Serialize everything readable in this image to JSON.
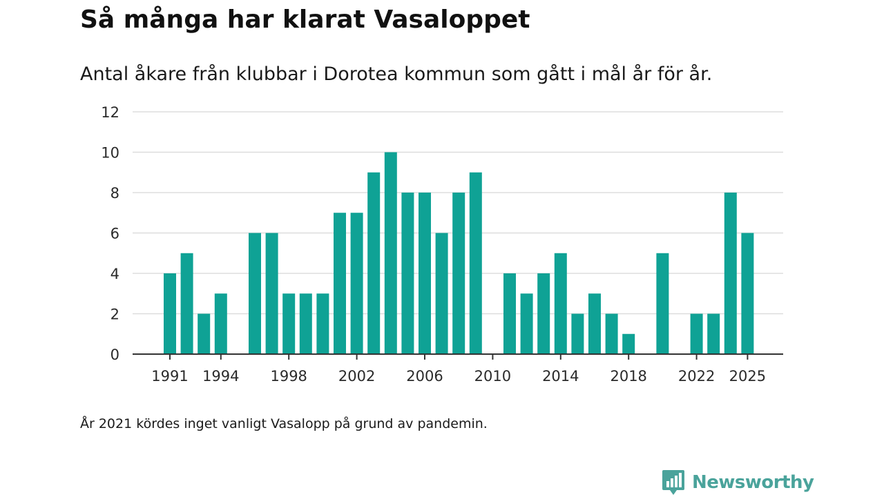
{
  "colors": {
    "bar": "#0fa295",
    "grid": "#dddddd",
    "axis": "#333333",
    "brand": "#4aa39b"
  },
  "chart_data": {
    "type": "bar",
    "title": "Så många har klarat Vasaloppet",
    "subtitle": "Antal åkare från klubbar i Dorotea kommun som gått i mål år för år.",
    "xlabel": "",
    "ylabel": "",
    "ylim": [
      0,
      12
    ],
    "yticks": [
      0,
      2,
      4,
      6,
      8,
      10,
      12
    ],
    "xticks": [
      "1991",
      "1994",
      "1998",
      "2002",
      "2006",
      "2010",
      "2014",
      "2018",
      "2022",
      "2025"
    ],
    "grid": true,
    "categories": [
      1991,
      1992,
      1993,
      1994,
      1995,
      1996,
      1997,
      1998,
      1999,
      2000,
      2001,
      2002,
      2003,
      2004,
      2005,
      2006,
      2007,
      2008,
      2009,
      2010,
      2011,
      2012,
      2013,
      2014,
      2015,
      2016,
      2017,
      2018,
      2019,
      2020,
      2021,
      2022,
      2023,
      2024,
      2025
    ],
    "values": [
      4,
      5,
      2,
      3,
      0,
      6,
      6,
      3,
      3,
      3,
      7,
      7,
      9,
      10,
      8,
      8,
      6,
      8,
      9,
      0,
      4,
      3,
      4,
      5,
      2,
      3,
      2,
      1,
      0,
      5,
      0,
      2,
      2,
      8,
      6
    ]
  },
  "footnote": "År 2021 kördes inget vanligt Vasalopp på grund av pandemin.",
  "brand": {
    "name": "Newsworthy",
    "icon": "newsworthy-logo-icon"
  }
}
